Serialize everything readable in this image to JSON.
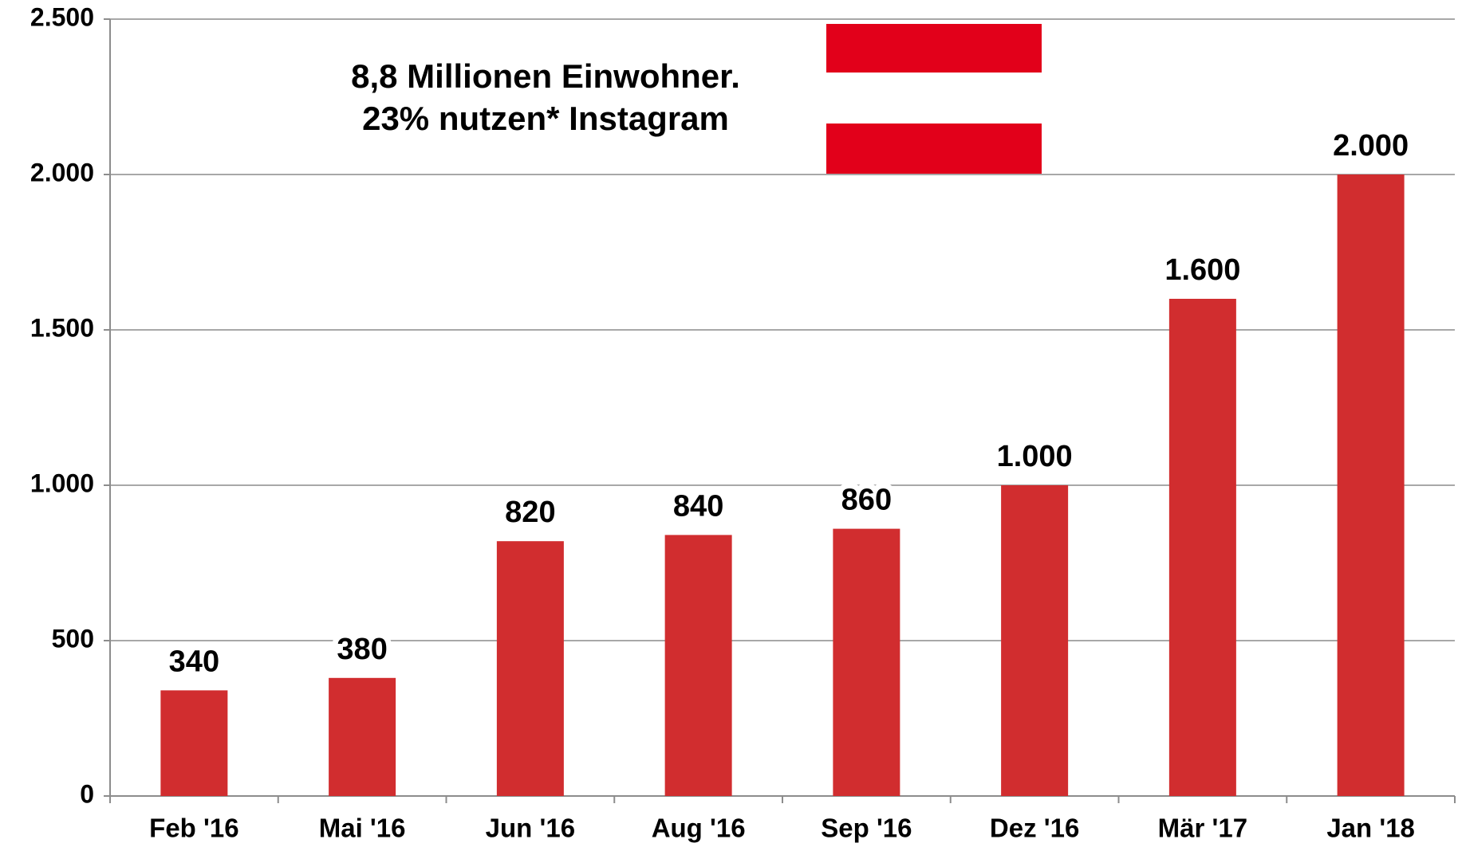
{
  "chart_data": {
    "type": "bar",
    "annotation": [
      "8,8 Millionen Einwohner.",
      "23% nutzen* Instagram"
    ],
    "categories": [
      "Feb '16",
      "Mai '16",
      "Jun '16",
      "Aug '16",
      "Sep '16",
      "Dez '16",
      "Mär '17",
      "Jan '18"
    ],
    "values": [
      340,
      380,
      820,
      840,
      860,
      1000,
      1600,
      2000
    ],
    "value_labels": [
      "340",
      "380",
      "820",
      "840",
      "860",
      "1.000",
      "1.600",
      "2.000"
    ],
    "color": "#d12d2f",
    "ylim": [
      0,
      2500
    ],
    "yticks": [
      0,
      500,
      {
        "value": 1000,
        "label": "1.000"
      },
      {
        "value": 1500,
        "label": "1.500"
      },
      {
        "value": 2000,
        "label": "2.000"
      },
      {
        "value": 2500,
        "label": "2.500"
      }
    ],
    "grid": true
  }
}
